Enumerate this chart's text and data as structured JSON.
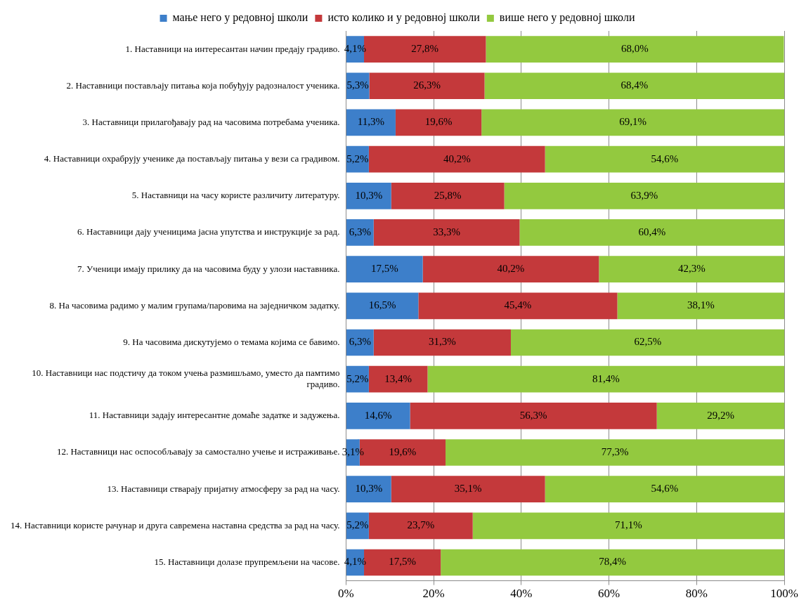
{
  "chart_data": {
    "type": "bar",
    "orientation": "horizontal",
    "stacked": true,
    "legend": "top",
    "grid": "x",
    "data_labels": false,
    "categories": [
      "1. Наставници на интересантан начин предају градиво.",
      "2. Наставници постављају питања која побуђују радозналост ученика.",
      "3. Наставници прилагођавају рад на часовима потребама ученика.",
      "4. Наставници охрабрују ученике да постављају питања у вези са градивом.",
      "5. Наставници на часу користе различиту литературу.",
      "6. Наставници дају ученицима јасна упутства и инструкције за рад.",
      "7. Ученици имају прилику да на часовима буду у улози наставника.",
      "8. На часовима радимо у малим групама/паровима на заједничком задатку.",
      "9. На часовима дискутујемо о темама којима се бавимо.",
      "10. Наставници нас подстичу да током учења размишљамо, уместо да памтимо градиво.",
      "11. Наставници задају интересантне домаће задатке и задужења.",
      "12. Наставници нас оспособљавају за самостално учење и истраживање.",
      "13. Наставници стварају пријатну атмосферу за рад на часу.",
      "14. Наставници користе рачунар и друга савремена наставна средства за рад на часу.",
      "15. Наставници долазе прупремљени на часове."
    ],
    "xlim": [
      0,
      100
    ],
    "xticks": [
      {
        "value": 0,
        "label": "0%"
      },
      {
        "value": 20,
        "label": "20%"
      },
      {
        "value": 40,
        "label": "40%"
      },
      {
        "value": 60,
        "label": "60%"
      },
      {
        "value": 80,
        "label": "80%"
      },
      {
        "value": 100,
        "label": "100%"
      }
    ],
    "series": [
      {
        "name": "мање него у редовној школи",
        "color": "#3d7fca",
        "values": [
          4.1,
          5.3,
          11.3,
          5.2,
          10.3,
          6.3,
          17.5,
          16.5,
          6.3,
          5.2,
          14.6,
          3.1,
          10.3,
          5.2,
          4.1
        ],
        "value_labels": [
          "4,1%",
          "5,3%",
          "11,3%",
          "5,2%",
          "10,3%",
          "6,3%",
          "17,5%",
          "16,5%",
          "6,3%",
          "5,2%",
          "14,6%",
          "3,1%",
          "10,3%",
          "5,2%",
          "4,1%"
        ]
      },
      {
        "name": "исто колико и у редовној школи",
        "color": "#c4393b",
        "values": [
          27.8,
          26.3,
          19.6,
          40.2,
          25.8,
          33.3,
          40.2,
          45.4,
          31.3,
          13.4,
          56.3,
          19.6,
          35.1,
          23.7,
          17.5
        ],
        "value_labels": [
          "27,8%",
          "26,3%",
          "19,6%",
          "40,2%",
          "25,8%",
          "33,3%",
          "40,2%",
          "45,4%",
          "31,3%",
          "13,4%",
          "56,3%",
          "19,6%",
          "35,1%",
          "23,7%",
          "17,5%"
        ]
      },
      {
        "name": "више него у редовној школи",
        "color": "#93c93f",
        "values": [
          68.0,
          68.4,
          69.1,
          54.6,
          63.9,
          60.4,
          42.3,
          38.1,
          62.5,
          81.4,
          29.2,
          77.3,
          54.6,
          71.1,
          78.4
        ],
        "value_labels": [
          "68,0%",
          "68,4%",
          "69,1%",
          "54,6%",
          "63,9%",
          "60,4%",
          "42,3%",
          "38,1%",
          "62,5%",
          "81,4%",
          "29,2%",
          "77,3%",
          "54,6%",
          "71,1%",
          "78,4%"
        ]
      }
    ]
  }
}
